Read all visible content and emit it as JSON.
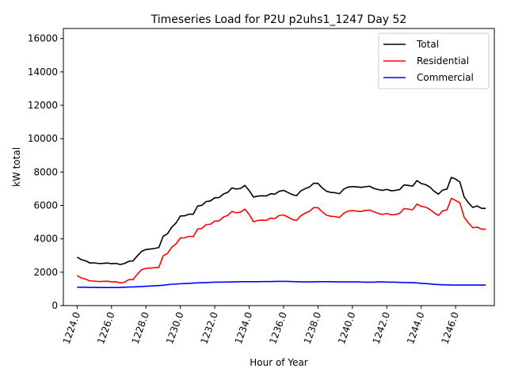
{
  "chart_data": {
    "type": "line",
    "title": "Timeseries Load for P2U p2uhs1_1247  Day 52",
    "xlabel": "Hour of Year",
    "ylabel": "kW total",
    "xlim": [
      1223.2,
      1248.25
    ],
    "ylim": [
      0,
      16600
    ],
    "x_ticks": [
      1224,
      1226,
      1228,
      1230,
      1232,
      1234,
      1236,
      1238,
      1240,
      1242,
      1244,
      1246
    ],
    "x_tick_labels": [
      "1224.0",
      "1226.0",
      "1228.0",
      "1230.0",
      "1232.0",
      "1234.0",
      "1236.0",
      "1238.0",
      "1240.0",
      "1242.0",
      "1244.0",
      "1246.0"
    ],
    "y_ticks": [
      0,
      2000,
      4000,
      6000,
      8000,
      10000,
      12000,
      14000,
      16000
    ],
    "y_tick_labels": [
      "0",
      "2000",
      "4000",
      "6000",
      "8000",
      "10000",
      "12000",
      "14000",
      "16000"
    ],
    "grid": false,
    "legend_position": "top-right",
    "x_start": 1224.0,
    "x_step": 0.25,
    "series": [
      {
        "name": "Total",
        "color": "#000000",
        "values": [
          2900,
          2750,
          2680,
          2550,
          2560,
          2520,
          2530,
          2550,
          2510,
          2530,
          2460,
          2520,
          2650,
          2680,
          2980,
          3250,
          3360,
          3390,
          3420,
          3480,
          4150,
          4300,
          4700,
          4950,
          5370,
          5380,
          5480,
          5470,
          5960,
          6010,
          6230,
          6270,
          6460,
          6470,
          6680,
          6780,
          7050,
          6980,
          7020,
          7200,
          6890,
          6500,
          6560,
          6580,
          6570,
          6700,
          6680,
          6850,
          6900,
          6780,
          6650,
          6580,
          6870,
          7000,
          7100,
          7330,
          7320,
          7050,
          6850,
          6780,
          6760,
          6700,
          6980,
          7100,
          7130,
          7110,
          7080,
          7120,
          7150,
          7020,
          6950,
          6900,
          6960,
          6880,
          6900,
          6950,
          7230,
          7200,
          7150,
          7490,
          7310,
          7250,
          7100,
          6850,
          6680,
          6920,
          6980,
          7680,
          7580,
          7400,
          6500,
          6150,
          5880,
          5970,
          5830,
          5820
        ]
      },
      {
        "name": "Residential",
        "color": "#ff0000",
        "values": [
          1800,
          1650,
          1580,
          1470,
          1470,
          1440,
          1450,
          1460,
          1420,
          1430,
          1360,
          1400,
          1550,
          1560,
          1880,
          2150,
          2230,
          2250,
          2270,
          2290,
          2980,
          3120,
          3500,
          3700,
          4050,
          4060,
          4150,
          4130,
          4580,
          4620,
          4850,
          4880,
          5060,
          5080,
          5300,
          5400,
          5640,
          5560,
          5600,
          5780,
          5460,
          5020,
          5100,
          5120,
          5110,
          5240,
          5220,
          5400,
          5430,
          5300,
          5160,
          5100,
          5380,
          5530,
          5650,
          5870,
          5860,
          5610,
          5420,
          5350,
          5330,
          5280,
          5530,
          5660,
          5690,
          5660,
          5640,
          5700,
          5720,
          5620,
          5520,
          5460,
          5520,
          5440,
          5450,
          5530,
          5810,
          5780,
          5740,
          6080,
          5950,
          5900,
          5760,
          5560,
          5400,
          5670,
          5740,
          6420,
          6300,
          6150,
          5280,
          4950,
          4660,
          4700,
          4580,
          4580
        ]
      },
      {
        "name": "Commercial",
        "color": "#0000ff",
        "values": [
          1100,
          1100,
          1100,
          1090,
          1090,
          1080,
          1080,
          1080,
          1080,
          1080,
          1090,
          1100,
          1110,
          1120,
          1130,
          1140,
          1160,
          1170,
          1190,
          1200,
          1220,
          1250,
          1280,
          1290,
          1310,
          1320,
          1330,
          1350,
          1360,
          1370,
          1380,
          1390,
          1400,
          1400,
          1410,
          1410,
          1420,
          1420,
          1430,
          1430,
          1430,
          1430,
          1430,
          1440,
          1440,
          1440,
          1450,
          1450,
          1450,
          1450,
          1440,
          1430,
          1420,
          1420,
          1420,
          1420,
          1430,
          1430,
          1430,
          1430,
          1420,
          1420,
          1420,
          1420,
          1420,
          1420,
          1410,
          1400,
          1400,
          1400,
          1420,
          1420,
          1410,
          1400,
          1400,
          1390,
          1380,
          1380,
          1370,
          1360,
          1330,
          1320,
          1300,
          1270,
          1260,
          1250,
          1240,
          1230,
          1230,
          1230,
          1230,
          1230,
          1230,
          1230,
          1230,
          1230
        ]
      }
    ]
  }
}
